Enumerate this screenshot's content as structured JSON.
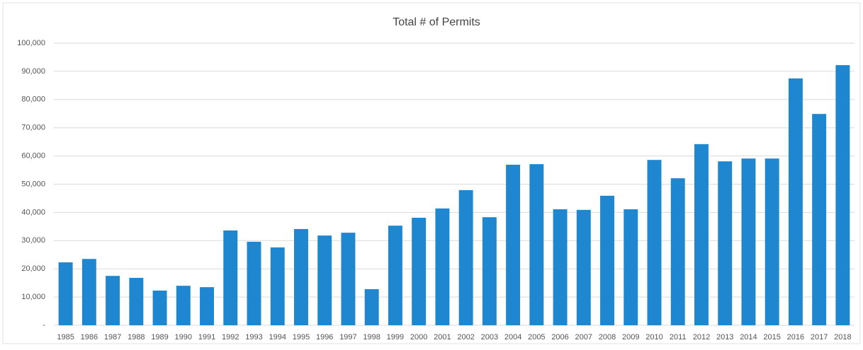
{
  "chart_data": {
    "type": "bar",
    "title": "Total # of Permits",
    "categories": [
      "1985",
      "1986",
      "1987",
      "1988",
      "1989",
      "1990",
      "1991",
      "1992",
      "1993",
      "1994",
      "1995",
      "1996",
      "1997",
      "1998",
      "1999",
      "2000",
      "2001",
      "2002",
      "2003",
      "2004",
      "2005",
      "2006",
      "2007",
      "2008",
      "2009",
      "2010",
      "2011",
      "2012",
      "2013",
      "2014",
      "2015",
      "2016",
      "2017",
      "2018"
    ],
    "values": [
      22300,
      23500,
      17500,
      16800,
      12300,
      14000,
      13500,
      33600,
      29600,
      27600,
      34100,
      31800,
      32800,
      12800,
      35300,
      38100,
      41400,
      47900,
      38300,
      56900,
      57100,
      41100,
      40900,
      45900,
      41100,
      58600,
      52100,
      64200,
      58100,
      59100,
      59100,
      87500,
      74900,
      92200
    ],
    "color": "#1f87d0",
    "ylim": [
      0,
      100000
    ],
    "yticks": [
      {
        "value": 0,
        "label": "-"
      },
      {
        "value": 10000,
        "label": "10,000"
      },
      {
        "value": 20000,
        "label": "20,000"
      },
      {
        "value": 30000,
        "label": "30,000"
      },
      {
        "value": 40000,
        "label": "40,000"
      },
      {
        "value": 50000,
        "label": "50,000"
      },
      {
        "value": 60000,
        "label": "60,000"
      },
      {
        "value": 70000,
        "label": "70,000"
      },
      {
        "value": 80000,
        "label": "80,000"
      },
      {
        "value": 90000,
        "label": "90,000"
      },
      {
        "value": 100000,
        "label": "100,000"
      }
    ],
    "grid": true
  }
}
